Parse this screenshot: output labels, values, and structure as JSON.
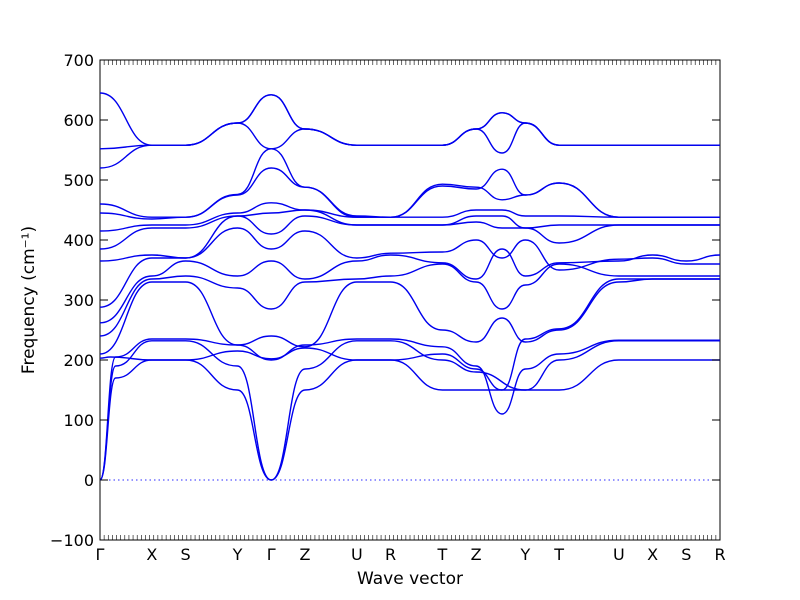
{
  "chart_data": {
    "type": "line",
    "title": "",
    "xlabel": "Wave vector",
    "ylabel": "Frequency (cm⁻¹)",
    "ylim": [
      -100,
      700
    ],
    "yticks": [
      -100,
      0,
      100,
      200,
      300,
      400,
      500,
      600,
      700
    ],
    "zero_line": 0,
    "grid": false,
    "legend": "none",
    "series_color": "#0000ee",
    "kpoints": [
      {
        "label": "Γ",
        "x": 0.0
      },
      {
        "label": "X",
        "x": 1.0
      },
      {
        "label": "S",
        "x": 1.65
      },
      {
        "label": "Y",
        "x": 2.65
      },
      {
        "label": "Γ",
        "x": 3.3
      },
      {
        "label": "Z",
        "x": 3.95
      },
      {
        "label": "U",
        "x": 4.95
      },
      {
        "label": "R",
        "x": 5.6
      },
      {
        "label": "T",
        "x": 6.6
      },
      {
        "label": "Z",
        "x": 7.25
      },
      {
        "label": "Y",
        "x": 8.2
      },
      {
        "label": "T",
        "x": 8.85
      },
      {
        "label": "U",
        "x": 10.0
      },
      {
        "label": "X",
        "x": 10.65
      },
      {
        "label": "S",
        "x": 11.3
      },
      {
        "label": "R",
        "x": 11.95
      }
    ],
    "xlim": [
      0,
      11.95
    ],
    "series": [
      {
        "x": [
          0,
          0.3,
          1.0,
          1.65,
          2.65,
          3.3,
          3.95,
          4.95,
          5.6,
          6.6,
          7.25,
          8.2,
          8.85,
          10.0,
          10.65,
          11.3,
          11.95
        ],
        "values": [
          0,
          170,
          200,
          200,
          150,
          0,
          150,
          200,
          200,
          150,
          150,
          150,
          150,
          200,
          200,
          200,
          200
        ]
      },
      {
        "x": [
          0,
          0.3,
          1.0,
          1.65,
          2.65,
          3.3,
          3.95,
          4.95,
          5.6,
          6.6,
          7.25,
          8.2,
          8.85,
          10.0,
          10.65,
          11.3,
          11.95
        ],
        "values": [
          0,
          190,
          232,
          232,
          190,
          0,
          185,
          232,
          232,
          200,
          180,
          150,
          200,
          232,
          232,
          232,
          232
        ]
      },
      {
        "x": [
          0,
          0.3,
          1.0,
          1.65,
          2.65,
          3.3,
          3.95,
          4.95,
          5.6,
          6.6,
          7.25,
          7.75,
          8.2,
          8.85,
          10.0,
          10.65,
          11.3,
          11.95
        ],
        "values": [
          0,
          205,
          235,
          235,
          225,
          200,
          225,
          235,
          235,
          222,
          190,
          110,
          185,
          210,
          233,
          233,
          233,
          233
        ]
      },
      {
        "x": [
          0,
          0.2,
          1.0,
          1.65,
          2.65,
          3.3,
          3.95,
          4.95,
          5.6,
          6.6,
          7.25,
          7.75,
          8.2,
          8.85,
          10.0,
          10.65,
          11.3,
          11.95
        ],
        "values": [
          203,
          205,
          200,
          200,
          215,
          202,
          220,
          200,
          200,
          210,
          185,
          150,
          235,
          252,
          335,
          335,
          335,
          335
        ]
      },
      {
        "x": [
          0,
          1.0,
          1.65,
          2.65,
          3.3,
          3.95,
          4.95,
          5.6,
          6.6,
          7.25,
          7.75,
          8.2,
          8.85,
          10.0,
          10.65,
          11.3,
          11.95
        ],
        "values": [
          210,
          330,
          330,
          225,
          240,
          222,
          330,
          330,
          250,
          230,
          270,
          230,
          250,
          330,
          335,
          335,
          335
        ]
      },
      {
        "x": [
          0,
          1.0,
          1.65,
          2.65,
          3.3,
          3.95,
          4.95,
          5.6,
          6.6,
          7.25,
          7.75,
          8.2,
          8.85,
          10.0,
          10.65,
          11.3,
          11.95
        ],
        "values": [
          240,
          335,
          340,
          320,
          285,
          330,
          335,
          340,
          360,
          330,
          285,
          325,
          360,
          340,
          340,
          340,
          340
        ]
      },
      {
        "x": [
          0,
          1.0,
          1.65,
          2.65,
          3.3,
          3.95,
          4.95,
          5.6,
          6.6,
          7.25,
          7.75,
          8.2,
          8.85,
          10.0,
          10.65,
          11.3,
          11.95
        ],
        "values": [
          262,
          340,
          365,
          340,
          365,
          335,
          365,
          375,
          362,
          335,
          385,
          340,
          362,
          365,
          375,
          365,
          375
        ]
      },
      {
        "x": [
          0,
          1.0,
          1.65,
          2.65,
          3.3,
          3.95,
          4.95,
          5.6,
          6.6,
          7.25,
          7.75,
          8.2,
          8.85,
          10.0,
          10.65,
          11.3,
          11.95
        ],
        "values": [
          288,
          370,
          370,
          420,
          385,
          415,
          370,
          378,
          380,
          400,
          370,
          400,
          350,
          368,
          370,
          360,
          360
        ]
      },
      {
        "x": [
          0,
          1.0,
          1.65,
          2.65,
          3.3,
          3.95,
          4.95,
          5.6,
          6.6,
          7.25,
          7.75,
          8.2,
          8.85,
          10.0,
          10.65,
          11.3,
          11.95
        ],
        "values": [
          365,
          375,
          370,
          440,
          410,
          440,
          425,
          425,
          425,
          430,
          420,
          420,
          395,
          425,
          425,
          425,
          425
        ]
      },
      {
        "x": [
          0,
          1.0,
          1.65,
          2.65,
          3.3,
          3.95,
          4.95,
          5.6,
          6.6,
          7.25,
          7.75,
          8.2,
          8.85,
          10.0,
          10.65,
          11.3,
          11.95
        ],
        "values": [
          385,
          420,
          420,
          440,
          445,
          450,
          425,
          425,
          425,
          440,
          440,
          420,
          425,
          425,
          425,
          425,
          425
        ]
      },
      {
        "x": [
          0,
          1.0,
          1.65,
          2.65,
          3.3,
          3.95,
          4.95,
          5.6,
          6.6,
          7.25,
          7.75,
          8.2,
          8.85,
          10.0,
          10.65,
          11.3,
          11.95
        ],
        "values": [
          415,
          425,
          425,
          445,
          462,
          450,
          438,
          438,
          438,
          450,
          450,
          440,
          440,
          438,
          438,
          438,
          438
        ]
      },
      {
        "x": [
          0,
          1.0,
          1.65,
          2.65,
          3.3,
          3.95,
          4.95,
          5.6,
          6.6,
          7.25,
          7.75,
          8.2,
          8.85,
          10.0,
          10.65,
          11.3,
          11.95
        ],
        "values": [
          445,
          435,
          438,
          475,
          520,
          488,
          438,
          438,
          490,
          485,
          518,
          475,
          495,
          438,
          438,
          438,
          438
        ]
      },
      {
        "x": [
          0,
          1.0,
          1.65,
          2.65,
          3.3,
          3.95,
          4.95,
          5.6,
          6.6,
          7.25,
          7.75,
          8.2,
          8.85,
          10.0,
          10.65,
          11.3,
          11.95
        ],
        "values": [
          460,
          438,
          438,
          476,
          552,
          488,
          440,
          438,
          493,
          488,
          467,
          475,
          495,
          438,
          438,
          438,
          438
        ]
      },
      {
        "x": [
          0,
          1.0,
          1.65,
          2.65,
          3.3,
          3.95,
          4.95,
          5.6,
          6.6,
          7.25,
          7.75,
          8.2,
          8.85,
          10.0,
          10.65,
          11.3,
          11.95
        ],
        "values": [
          520,
          558,
          558,
          595,
          552,
          585,
          558,
          558,
          558,
          585,
          545,
          595,
          558,
          558,
          558,
          558,
          558
        ]
      },
      {
        "x": [
          0,
          1.0,
          1.65,
          2.65,
          3.3,
          3.95,
          4.95,
          5.6,
          6.6,
          7.25,
          7.75,
          8.2,
          8.85,
          10.0,
          10.65,
          11.3,
          11.95
        ],
        "values": [
          552,
          558,
          558,
          595,
          642,
          585,
          558,
          558,
          558,
          585,
          612,
          595,
          558,
          558,
          558,
          558,
          558
        ]
      },
      {
        "x": [
          0,
          1.0,
          1.65,
          2.65,
          3.3,
          3.95,
          4.95,
          5.6,
          6.6,
          7.25,
          7.75,
          8.2,
          8.85,
          10.0,
          10.65,
          11.3,
          11.95
        ],
        "values": [
          645,
          558,
          558,
          595,
          642,
          585,
          558,
          558,
          558,
          585,
          612,
          595,
          558,
          558,
          558,
          558,
          558
        ]
      }
    ]
  }
}
